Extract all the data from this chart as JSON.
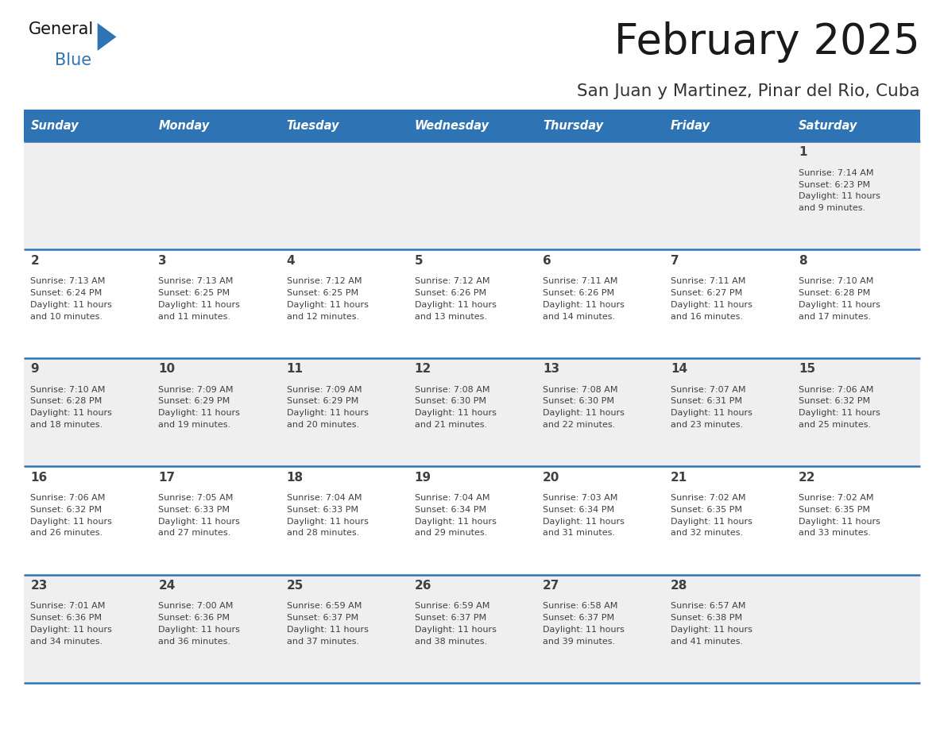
{
  "title": "February 2025",
  "subtitle": "San Juan y Martinez, Pinar del Rio, Cuba",
  "days_of_week": [
    "Sunday",
    "Monday",
    "Tuesday",
    "Wednesday",
    "Thursday",
    "Friday",
    "Saturday"
  ],
  "header_bg": "#2E74B5",
  "header_text": "#FFFFFF",
  "cell_bg_odd": "#EFEFEF",
  "cell_bg_even": "#FFFFFF",
  "divider_color": "#2E74B5",
  "text_color": "#404040",
  "title_color": "#1A1A1A",
  "subtitle_color": "#333333",
  "calendar_data": [
    [
      {
        "day": null,
        "info": null
      },
      {
        "day": null,
        "info": null
      },
      {
        "day": null,
        "info": null
      },
      {
        "day": null,
        "info": null
      },
      {
        "day": null,
        "info": null
      },
      {
        "day": null,
        "info": null
      },
      {
        "day": 1,
        "info": "Sunrise: 7:14 AM\nSunset: 6:23 PM\nDaylight: 11 hours\nand 9 minutes."
      }
    ],
    [
      {
        "day": 2,
        "info": "Sunrise: 7:13 AM\nSunset: 6:24 PM\nDaylight: 11 hours\nand 10 minutes."
      },
      {
        "day": 3,
        "info": "Sunrise: 7:13 AM\nSunset: 6:25 PM\nDaylight: 11 hours\nand 11 minutes."
      },
      {
        "day": 4,
        "info": "Sunrise: 7:12 AM\nSunset: 6:25 PM\nDaylight: 11 hours\nand 12 minutes."
      },
      {
        "day": 5,
        "info": "Sunrise: 7:12 AM\nSunset: 6:26 PM\nDaylight: 11 hours\nand 13 minutes."
      },
      {
        "day": 6,
        "info": "Sunrise: 7:11 AM\nSunset: 6:26 PM\nDaylight: 11 hours\nand 14 minutes."
      },
      {
        "day": 7,
        "info": "Sunrise: 7:11 AM\nSunset: 6:27 PM\nDaylight: 11 hours\nand 16 minutes."
      },
      {
        "day": 8,
        "info": "Sunrise: 7:10 AM\nSunset: 6:28 PM\nDaylight: 11 hours\nand 17 minutes."
      }
    ],
    [
      {
        "day": 9,
        "info": "Sunrise: 7:10 AM\nSunset: 6:28 PM\nDaylight: 11 hours\nand 18 minutes."
      },
      {
        "day": 10,
        "info": "Sunrise: 7:09 AM\nSunset: 6:29 PM\nDaylight: 11 hours\nand 19 minutes."
      },
      {
        "day": 11,
        "info": "Sunrise: 7:09 AM\nSunset: 6:29 PM\nDaylight: 11 hours\nand 20 minutes."
      },
      {
        "day": 12,
        "info": "Sunrise: 7:08 AM\nSunset: 6:30 PM\nDaylight: 11 hours\nand 21 minutes."
      },
      {
        "day": 13,
        "info": "Sunrise: 7:08 AM\nSunset: 6:30 PM\nDaylight: 11 hours\nand 22 minutes."
      },
      {
        "day": 14,
        "info": "Sunrise: 7:07 AM\nSunset: 6:31 PM\nDaylight: 11 hours\nand 23 minutes."
      },
      {
        "day": 15,
        "info": "Sunrise: 7:06 AM\nSunset: 6:32 PM\nDaylight: 11 hours\nand 25 minutes."
      }
    ],
    [
      {
        "day": 16,
        "info": "Sunrise: 7:06 AM\nSunset: 6:32 PM\nDaylight: 11 hours\nand 26 minutes."
      },
      {
        "day": 17,
        "info": "Sunrise: 7:05 AM\nSunset: 6:33 PM\nDaylight: 11 hours\nand 27 minutes."
      },
      {
        "day": 18,
        "info": "Sunrise: 7:04 AM\nSunset: 6:33 PM\nDaylight: 11 hours\nand 28 minutes."
      },
      {
        "day": 19,
        "info": "Sunrise: 7:04 AM\nSunset: 6:34 PM\nDaylight: 11 hours\nand 29 minutes."
      },
      {
        "day": 20,
        "info": "Sunrise: 7:03 AM\nSunset: 6:34 PM\nDaylight: 11 hours\nand 31 minutes."
      },
      {
        "day": 21,
        "info": "Sunrise: 7:02 AM\nSunset: 6:35 PM\nDaylight: 11 hours\nand 32 minutes."
      },
      {
        "day": 22,
        "info": "Sunrise: 7:02 AM\nSunset: 6:35 PM\nDaylight: 11 hours\nand 33 minutes."
      }
    ],
    [
      {
        "day": 23,
        "info": "Sunrise: 7:01 AM\nSunset: 6:36 PM\nDaylight: 11 hours\nand 34 minutes."
      },
      {
        "day": 24,
        "info": "Sunrise: 7:00 AM\nSunset: 6:36 PM\nDaylight: 11 hours\nand 36 minutes."
      },
      {
        "day": 25,
        "info": "Sunrise: 6:59 AM\nSunset: 6:37 PM\nDaylight: 11 hours\nand 37 minutes."
      },
      {
        "day": 26,
        "info": "Sunrise: 6:59 AM\nSunset: 6:37 PM\nDaylight: 11 hours\nand 38 minutes."
      },
      {
        "day": 27,
        "info": "Sunrise: 6:58 AM\nSunset: 6:37 PM\nDaylight: 11 hours\nand 39 minutes."
      },
      {
        "day": 28,
        "info": "Sunrise: 6:57 AM\nSunset: 6:38 PM\nDaylight: 11 hours\nand 41 minutes."
      },
      {
        "day": null,
        "info": null
      }
    ]
  ]
}
